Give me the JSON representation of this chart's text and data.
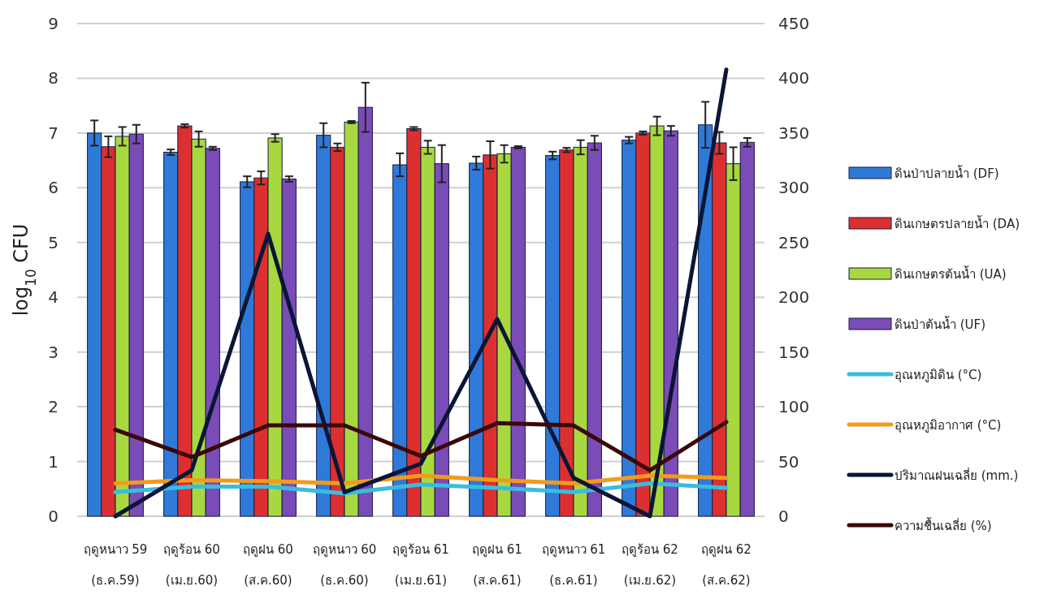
{
  "chart_data": {
    "type": "bar",
    "ylabel": "log$_{10}$ CFU",
    "categories": [
      "ฤดูหนาว 59\n(ธ.ค.59)",
      "ฤดูร้อน 60\n(เม.ย.60)",
      "ฤดูฝน 60\n(ส.ค.60)",
      "ฤดูหนาว 60\n(ธ.ค.60)",
      "ฤดูร้อน 61\n(เม.ย.61)",
      "ฤดูฝน 61\n(ส.ค.61)",
      "ฤดูหนาว 61\n(ธ.ค.61)",
      "ฤดูร้อน 62\n(เม.ย.62)",
      "ฤดูฝน 62\n(ส.ค.62)"
    ],
    "series": [
      {
        "name": "ดินป่าปลายน้ำ (DF)",
        "color": "#2f7ad8",
        "values": [
          7.0,
          6.65,
          6.11,
          6.96,
          6.42,
          6.45,
          6.59,
          6.87,
          7.15
        ],
        "errors": [
          0.23,
          0.05,
          0.1,
          0.22,
          0.21,
          0.12,
          0.07,
          0.06,
          0.42
        ]
      },
      {
        "name": "ดินเกษตรปลายน้ำ (DA)",
        "color": "#dc3030",
        "values": [
          6.75,
          7.13,
          6.18,
          6.74,
          7.08,
          6.6,
          6.69,
          7.0,
          6.82
        ],
        "errors": [
          0.19,
          0.03,
          0.12,
          0.07,
          0.03,
          0.25,
          0.04,
          0.03,
          0.2
        ]
      },
      {
        "name": "ดินเกษตรต้นน้ำ (UA)",
        "color": "#a8d840",
        "values": [
          6.94,
          6.89,
          6.91,
          7.2,
          6.74,
          6.62,
          6.74,
          7.13,
          6.44
        ],
        "errors": [
          0.17,
          0.14,
          0.07,
          0.02,
          0.12,
          0.16,
          0.13,
          0.17,
          0.3
        ]
      },
      {
        "name": "ดินป่าต้นน้ำ (UF)",
        "color": "#7a4cb8",
        "values": [
          6.98,
          6.72,
          6.16,
          7.47,
          6.44,
          6.74,
          6.82,
          7.04,
          6.83
        ],
        "errors": [
          0.17,
          0.03,
          0.05,
          0.45,
          0.34,
          0.02,
          0.13,
          0.09,
          0.08
        ]
      },
      {
        "name": "อุณหภูมิดิน (°C)",
        "type": "line",
        "axis": "y2",
        "color": "#38bde0",
        "values": [
          22,
          27,
          27,
          21,
          29,
          26,
          22,
          30,
          26
        ]
      },
      {
        "name": "อุณหภูมิอากาศ (°C)",
        "type": "line",
        "axis": "y2",
        "color": "#f39a1e",
        "values": [
          30,
          33,
          32,
          30,
          37,
          33,
          30,
          37,
          35
        ]
      },
      {
        "name": "ปริมาณฝนเฉลี่ย (mm.)",
        "type": "line",
        "axis": "y2",
        "color": "#0b1535",
        "values": [
          0,
          42,
          258,
          22,
          48,
          180,
          35,
          0,
          408
        ]
      },
      {
        "name": "ความชื้นเฉลี่ย (%)",
        "type": "line",
        "axis": "y2",
        "color": "#3a0808",
        "values": [
          79,
          54,
          83,
          83,
          55,
          85,
          83,
          42,
          86
        ]
      }
    ],
    "ylim": [
      0,
      9
    ],
    "yticks": [
      0,
      1,
      2,
      3,
      4,
      5,
      6,
      7,
      8,
      9
    ],
    "y2lim": [
      0,
      450
    ],
    "y2ticks": [
      0,
      50,
      100,
      150,
      200,
      250,
      300,
      350,
      400,
      450
    ],
    "grid": "y",
    "legend": "right"
  }
}
